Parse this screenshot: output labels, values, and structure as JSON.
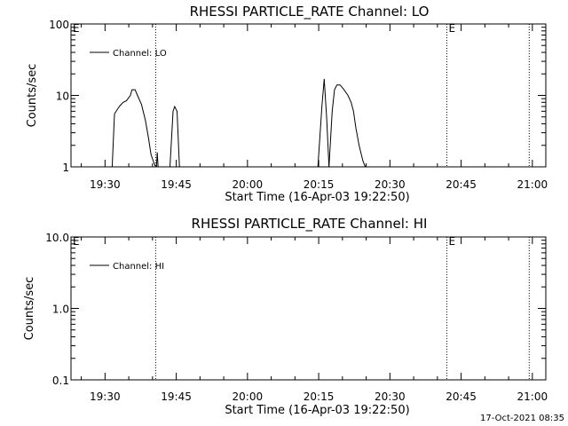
{
  "footer_timestamp": "17-Oct-2021 08:35",
  "chart_data": [
    {
      "type": "line",
      "title": "RHESSI PARTICLE_RATE Channel: LO",
      "xlabel": "Start Time (16-Apr-03 19:22:50)",
      "ylabel": "Counts/sec",
      "yscale": "log",
      "ylim": [
        1,
        100
      ],
      "yticks": [
        1,
        10,
        100
      ],
      "ytick_labels": [
        "1",
        "10",
        "100"
      ],
      "xlim": [
        "19:22:50",
        "21:02:50"
      ],
      "xticks": [
        "19:30",
        "19:45",
        "20:00",
        "20:15",
        "20:30",
        "20:45",
        "21:00"
      ],
      "legend_placement": "top-left",
      "event_marker_label": "E",
      "event_marker_times": [
        "19:22:50",
        "20:42:00"
      ],
      "marker_times": [
        "19:40:40",
        "20:42:00",
        "20:59:20"
      ],
      "series": [
        {
          "name": "Channel: LO",
          "segments": [
            {
              "x": [
                "19:31:30",
                "19:32:00",
                "19:32:40",
                "19:33:10",
                "19:33:50",
                "19:34:30",
                "19:35:20",
                "19:35:40",
                "19:36:20",
                "19:36:50",
                "19:37:40",
                "19:38:30",
                "19:39:10",
                "19:39:40",
                "19:40:10",
                "19:40:40"
              ],
              "y": [
                1,
                5.5,
                6.5,
                7.2,
                8,
                8.4,
                10,
                12,
                12,
                10,
                7.5,
                4.5,
                2.5,
                1.5,
                1.2,
                1
              ]
            },
            {
              "x": [
                "19:40:50",
                "19:41:00",
                "19:41:10"
              ],
              "y": [
                1,
                1.6,
                1
              ]
            },
            {
              "x": [
                "19:43:40",
                "19:44:20",
                "19:44:40",
                "19:45:10",
                "19:45:40"
              ],
              "y": [
                1,
                6,
                7,
                6,
                1
              ]
            },
            {
              "x": [
                "20:14:50",
                "20:15:40",
                "20:16:10",
                "20:16:40",
                "20:17:10"
              ],
              "y": [
                1,
                7,
                17,
                5,
                1
              ]
            },
            {
              "x": [
                "20:17:10",
                "20:17:50",
                "20:18:20",
                "20:18:50",
                "20:19:30",
                "20:20:20",
                "20:21:10",
                "20:21:50",
                "20:22:20",
                "20:22:50",
                "20:23:30",
                "20:24:20",
                "20:24:50"
              ],
              "y": [
                1,
                6,
                12,
                14,
                14,
                12,
                10,
                8,
                6,
                3.5,
                2,
                1.2,
                1
              ]
            }
          ]
        }
      ]
    },
    {
      "type": "line",
      "title": "RHESSI PARTICLE_RATE Channel: HI",
      "xlabel": "Start Time (16-Apr-03 19:22:50)",
      "ylabel": "Counts/sec",
      "yscale": "log",
      "ylim": [
        0.1,
        10
      ],
      "yticks": [
        0.1,
        1,
        10
      ],
      "ytick_labels": [
        "0.1",
        "1.0",
        "10.0"
      ],
      "xlim": [
        "19:22:50",
        "21:02:50"
      ],
      "xticks": [
        "19:30",
        "19:45",
        "20:00",
        "20:15",
        "20:30",
        "20:45",
        "21:00"
      ],
      "legend_placement": "top-left",
      "event_marker_label": "E",
      "event_marker_times": [
        "19:22:50",
        "20:42:00"
      ],
      "marker_times": [
        "19:40:40",
        "20:42:00",
        "20:59:20"
      ],
      "series": [
        {
          "name": "Channel: HI",
          "segments": []
        }
      ]
    }
  ]
}
